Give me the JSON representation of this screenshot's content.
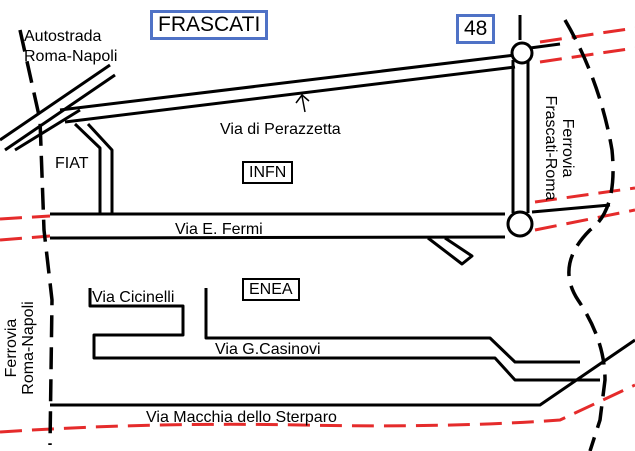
{
  "map": {
    "city": "FRASCATI",
    "route_number": "48",
    "motorway": {
      "line1": "Autostrada",
      "line2": "Roma-Napoli"
    },
    "railway_frascati": {
      "line1": "Ferrovia",
      "line2": "Frascati-Roma"
    },
    "railway_napoli": {
      "line1": "Ferrovia",
      "line2": "Roma-Napoli"
    },
    "streets": {
      "perazzetta": "Via di Perazzetta",
      "fermi": "Via  E.  Fermi",
      "cicinelli": "Via Cicinelli",
      "casinovi": "Via G.Casinovi",
      "macchia": "Via Macchia dello Sterparo"
    },
    "sites": {
      "fiat": "FIAT",
      "infn": "INFN",
      "enea": "ENEA"
    },
    "colors": {
      "road": "#000000",
      "railway_dash": "#000000",
      "boundary_dash": "#e52b2b",
      "title_border": "#4f72c6"
    }
  }
}
